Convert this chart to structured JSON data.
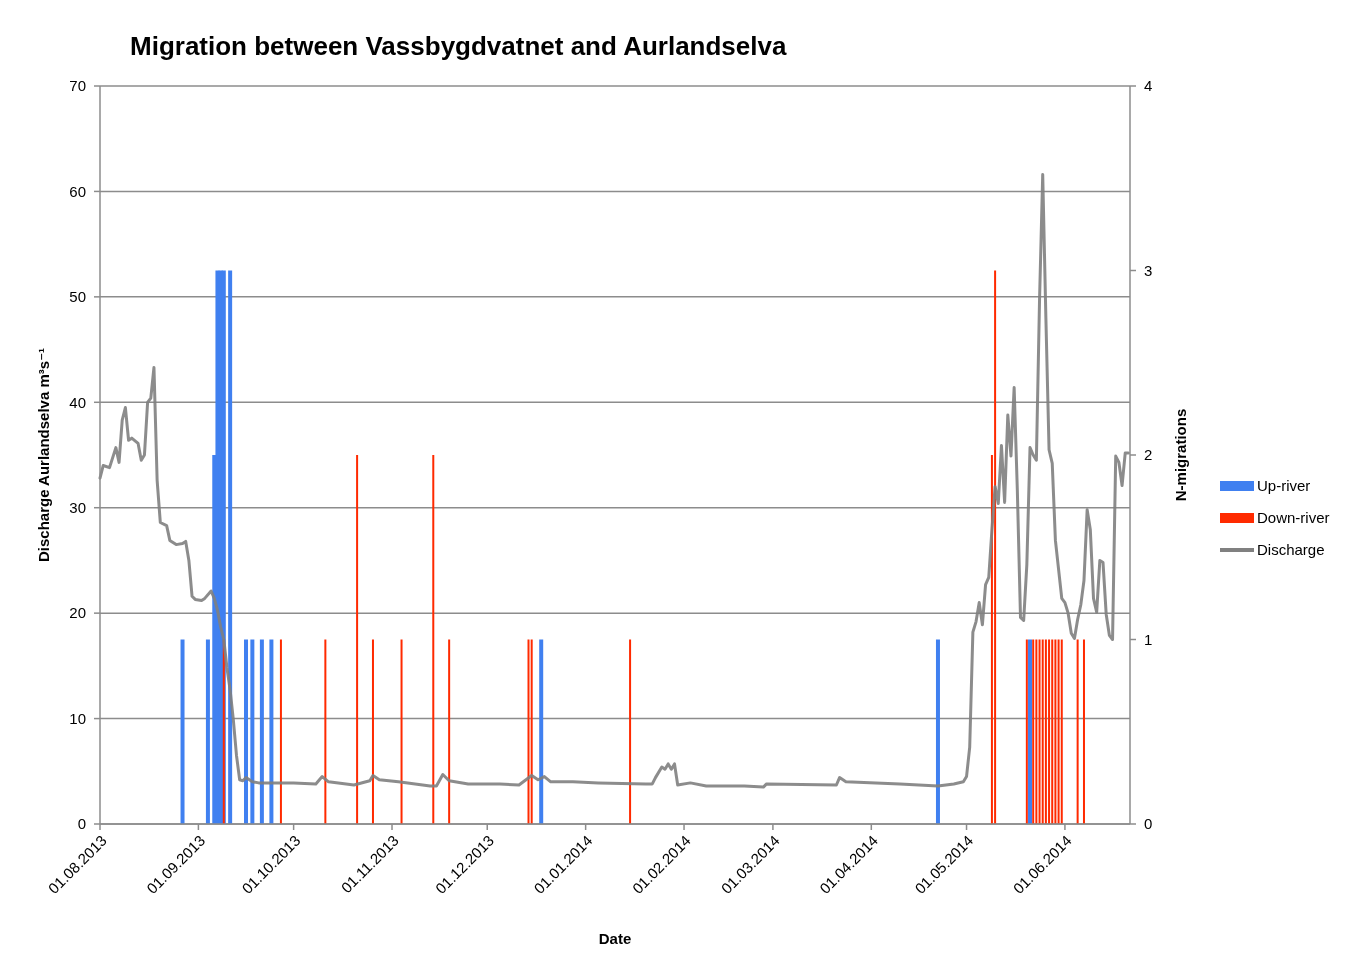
{
  "chart_data": {
    "type": "bar",
    "title": "Migration between Vassbygdvatnet and Aurlandselva",
    "xlabel": "Date",
    "ylabel": "Discharge Aurlandselva m³s⁻¹",
    "y2label": "N-migrations",
    "xlim": [
      "2013-08-01",
      "2014-06-21T12:00"
    ],
    "xticks": [
      {
        "value": "2013-08-01",
        "label": "01.08.2013"
      },
      {
        "value": "2013-09-01",
        "label": "01.09.2013"
      },
      {
        "value": "2013-10-01",
        "label": "01.10.2013"
      },
      {
        "value": "2013-11-01",
        "label": "01.11.2013"
      },
      {
        "value": "2013-12-01",
        "label": "01.12.2013"
      },
      {
        "value": "2014-01-01",
        "label": "01.01.2014"
      },
      {
        "value": "2014-02-01",
        "label": "01.02.2014"
      },
      {
        "value": "2014-03-01",
        "label": "01.03.2014"
      },
      {
        "value": "2014-04-01",
        "label": "01.04.2014"
      },
      {
        "value": "2014-05-01",
        "label": "01.05.2014"
      },
      {
        "value": "2014-06-01",
        "label": "01.06.2014"
      }
    ],
    "ylim": [
      0,
      70
    ],
    "yticks": [
      0,
      10,
      20,
      30,
      40,
      50,
      60,
      70
    ],
    "y2lim": [
      0,
      4
    ],
    "y2ticks": [
      0,
      1,
      2,
      3,
      4
    ],
    "grid": "y",
    "legend": "right",
    "series": [
      {
        "name": "Up-river",
        "axis": "y2",
        "color": "#4080f0",
        "x": [
          "2013-08-27",
          "2013-09-04",
          "2013-09-06",
          "2013-09-07",
          "2013-09-08",
          "2013-09-09",
          "2013-09-11",
          "2013-09-16",
          "2013-09-18",
          "2013-09-21",
          "2013-09-24",
          "2013-12-18",
          "2014-04-22",
          "2014-05-21"
        ],
        "values": [
          1,
          1,
          2,
          3,
          3,
          3,
          3,
          1,
          1,
          1,
          1,
          1,
          1,
          1
        ]
      },
      {
        "name": "Down-river",
        "axis": "y2",
        "color": "#ff2a00",
        "x": [
          "2013-09-09",
          "2013-09-27",
          "2013-10-11",
          "2013-10-21",
          "2013-10-26",
          "2013-11-04",
          "2013-11-14",
          "2013-11-19",
          "2013-12-14",
          "2013-12-15",
          "2014-01-15",
          "2014-05-09",
          "2014-05-10",
          "2014-05-20",
          "2014-05-22",
          "2014-05-23",
          "2014-05-24",
          "2014-05-25",
          "2014-05-26",
          "2014-05-27",
          "2014-05-28",
          "2014-05-29",
          "2014-05-30",
          "2014-05-31",
          "2014-06-05",
          "2014-06-07"
        ],
        "values": [
          1,
          1,
          1,
          2,
          1,
          1,
          2,
          1,
          1,
          1,
          1,
          2,
          3,
          1,
          1,
          1,
          1,
          1,
          1,
          1,
          1,
          1,
          1,
          1,
          1,
          1
        ]
      },
      {
        "name": "Discharge",
        "type": "line",
        "axis": "y",
        "color": "#808080",
        "x": [
          "2013-08-01",
          "2013-08-02",
          "2013-08-04",
          "2013-08-06",
          "2013-08-07",
          "2013-08-08",
          "2013-08-09",
          "2013-08-10",
          "2013-08-11",
          "2013-08-13",
          "2013-08-14",
          "2013-08-15",
          "2013-08-16",
          "2013-08-17",
          "2013-08-18",
          "2013-08-19",
          "2013-08-20",
          "2013-08-22",
          "2013-08-23",
          "2013-08-24",
          "2013-08-25",
          "2013-08-27",
          "2013-08-28",
          "2013-08-29",
          "2013-08-30",
          "2013-08-31",
          "2013-09-02",
          "2013-09-03",
          "2013-09-05",
          "2013-09-06",
          "2013-09-07",
          "2013-09-08",
          "2013-09-09",
          "2013-09-10",
          "2013-09-11",
          "2013-09-12",
          "2013-09-13",
          "2013-09-14",
          "2013-09-15",
          "2013-09-16",
          "2013-09-18",
          "2013-09-20",
          "2013-09-25",
          "2013-10-01",
          "2013-10-08",
          "2013-10-10",
          "2013-10-12",
          "2013-10-20",
          "2013-10-25",
          "2013-10-26",
          "2013-10-28",
          "2013-11-03",
          "2013-11-13",
          "2013-11-15",
          "2013-11-17",
          "2013-11-19",
          "2013-11-25",
          "2013-12-05",
          "2013-12-11",
          "2013-12-15",
          "2013-12-17",
          "2013-12-19",
          "2013-12-21",
          "2013-12-28",
          "2014-01-05",
          "2014-01-20",
          "2014-01-22",
          "2014-01-23",
          "2014-01-25",
          "2014-01-26",
          "2014-01-27",
          "2014-01-28",
          "2014-01-29",
          "2014-01-30",
          "2014-02-03",
          "2014-02-08",
          "2014-02-20",
          "2014-02-26",
          "2014-02-27",
          "2014-03-21",
          "2014-03-22",
          "2014-03-24",
          "2014-04-10",
          "2014-04-22",
          "2014-04-27",
          "2014-04-30",
          "2014-05-01",
          "2014-05-02",
          "2014-05-03",
          "2014-05-04",
          "2014-05-05",
          "2014-05-06",
          "2014-05-07",
          "2014-05-08",
          "2014-05-09",
          "2014-05-10",
          "2014-05-11",
          "2014-05-12",
          "2014-05-13",
          "2014-05-14",
          "2014-05-15",
          "2014-05-16",
          "2014-05-17",
          "2014-05-18",
          "2014-05-19",
          "2014-05-20",
          "2014-05-21",
          "2014-05-22",
          "2014-05-23",
          "2014-05-24",
          "2014-05-25",
          "2014-05-26",
          "2014-05-27",
          "2014-05-28",
          "2014-05-29",
          "2014-05-31",
          "2014-06-01",
          "2014-06-02",
          "2014-06-03",
          "2014-06-04",
          "2014-06-05",
          "2014-06-06",
          "2014-06-07",
          "2014-06-08",
          "2014-06-09",
          "2014-06-10",
          "2014-06-11",
          "2014-06-12",
          "2014-06-13",
          "2014-06-14",
          "2014-06-15",
          "2014-06-16",
          "2014-06-17",
          "2014-06-18",
          "2014-06-19",
          "2014-06-20",
          "2014-06-21"
        ],
        "values": [
          32.8,
          34.0,
          33.8,
          35.7,
          34.3,
          38.3,
          39.5,
          36.4,
          36.6,
          36.1,
          34.5,
          35.0,
          40.0,
          40.4,
          43.3,
          32.6,
          28.6,
          28.3,
          26.9,
          26.7,
          26.5,
          26.6,
          26.8,
          25.0,
          21.6,
          21.3,
          21.2,
          21.4,
          22.1,
          21.4,
          20.3,
          18.7,
          17.5,
          14.8,
          12.7,
          9.9,
          6.5,
          4.2,
          4.1,
          4.4,
          4.0,
          3.9,
          3.9,
          3.9,
          3.8,
          4.5,
          4.0,
          3.7,
          4.1,
          4.6,
          4.2,
          4.0,
          3.6,
          3.6,
          4.7,
          4.1,
          3.8,
          3.8,
          3.7,
          4.6,
          4.2,
          4.5,
          4.0,
          4.0,
          3.9,
          3.8,
          3.8,
          4.4,
          5.4,
          5.2,
          5.7,
          5.2,
          5.7,
          3.7,
          3.9,
          3.6,
          3.6,
          3.5,
          3.8,
          3.7,
          4.4,
          4.0,
          3.8,
          3.6,
          3.8,
          4.0,
          4.5,
          7.3,
          18.2,
          19.2,
          21.0,
          18.9,
          22.7,
          23.4,
          27.9,
          32.0,
          30.4,
          35.9,
          30.5,
          38.8,
          34.9,
          41.4,
          31.7,
          19.6,
          19.3,
          24.6,
          35.7,
          35.0,
          34.5,
          49.7,
          61.6,
          48.0,
          35.5,
          34.2,
          26.9,
          21.4,
          21.0,
          20.0,
          18.1,
          17.6,
          19.4,
          20.8,
          23.1,
          29.8,
          27.9,
          21.4,
          20.1,
          25.0,
          24.8,
          19.9,
          17.9,
          17.5,
          34.9,
          34.3,
          32.1,
          35.2,
          35.2
        ]
      }
    ]
  }
}
